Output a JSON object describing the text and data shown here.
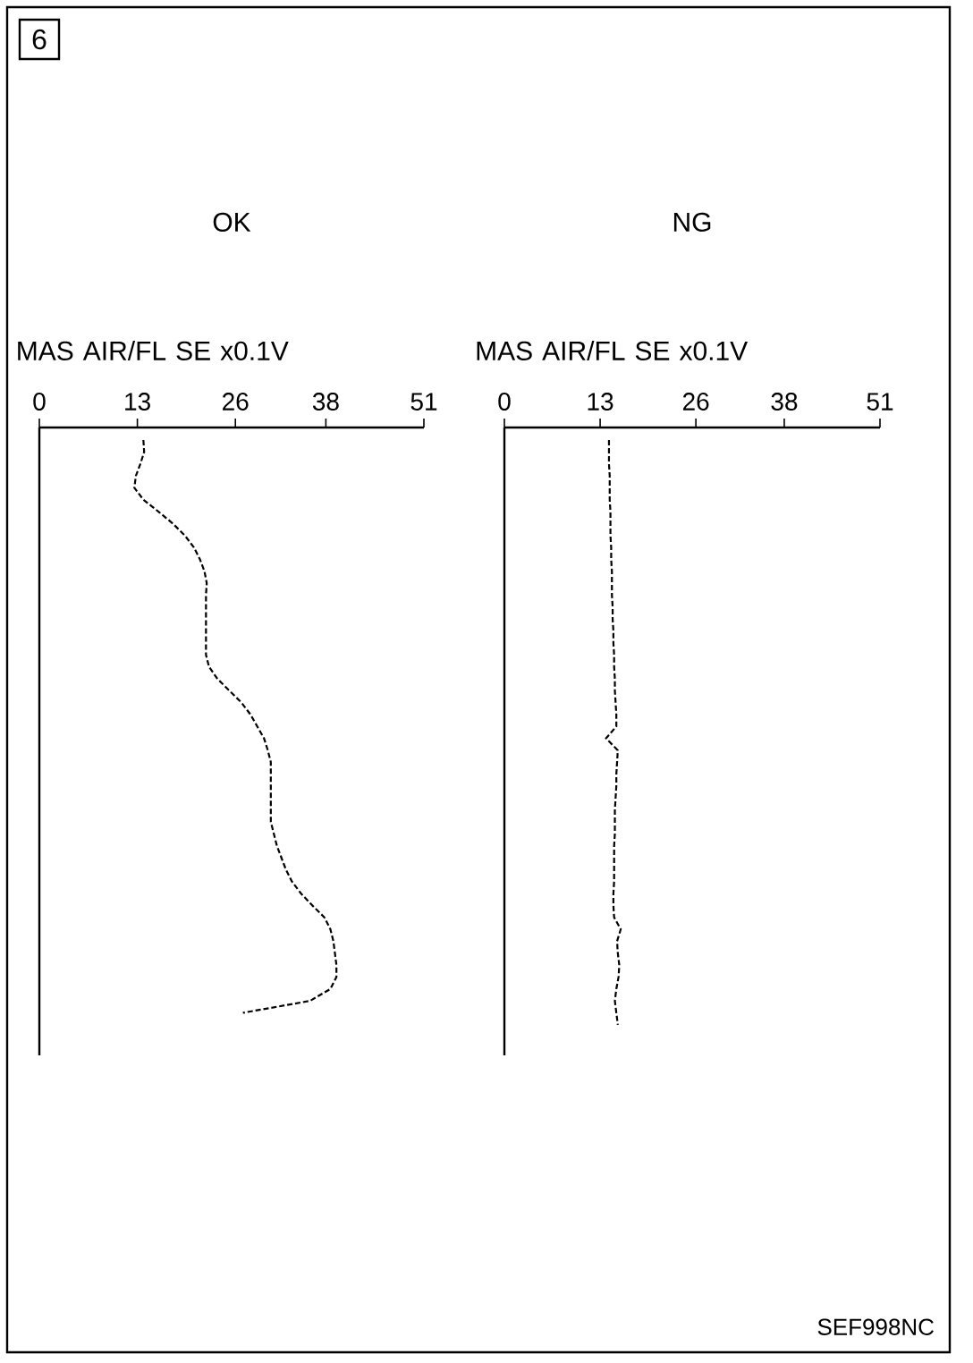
{
  "chart_data": [
    {
      "type": "line",
      "orientation": "horizontal",
      "title": "OK",
      "xlabel": "MAS AIR/FL SE x0.1V",
      "xlim": [
        0,
        51
      ],
      "xticks": [
        0,
        13,
        26,
        38,
        51
      ],
      "line_style": "dashed",
      "color": "#000000",
      "annotations": [
        "6"
      ],
      "categories": [
        null,
        null,
        null,
        null,
        null,
        null,
        null,
        null,
        null,
        null,
        null,
        null,
        null,
        null,
        null,
        null,
        null,
        null,
        null,
        null,
        null,
        null,
        null,
        null,
        null,
        null,
        null,
        null,
        null,
        null,
        null,
        null,
        null,
        null,
        null,
        null,
        null,
        null,
        null,
        null,
        null,
        null,
        null,
        null,
        null,
        null,
        null,
        null,
        null
      ],
      "values": [
        13.8,
        13.9,
        13.4,
        12.8,
        12.6,
        13.8,
        15.8,
        17.7,
        19.3,
        20.5,
        21.3,
        21.9,
        22.2,
        22.1,
        22.1,
        22.1,
        22.1,
        22.1,
        22.1,
        22.5,
        23.6,
        25.2,
        26.8,
        28.0,
        28.9,
        29.8,
        30.3,
        30.7,
        30.7,
        30.7,
        30.7,
        30.7,
        30.7,
        31.1,
        31.5,
        32.1,
        32.7,
        33.5,
        34.7,
        36.2,
        37.8,
        38.6,
        39.0,
        39.2,
        39.4,
        39.4,
        38.6,
        35.9,
        27.0
      ]
    },
    {
      "type": "line",
      "orientation": "horizontal",
      "title": "NG",
      "xlabel": "MAS AIR/FL SE x0.1V",
      "xlim": [
        0,
        51
      ],
      "xticks": [
        0,
        13,
        26,
        38,
        51
      ],
      "line_style": "dashed",
      "color": "#000000",
      "annotations": [
        "SEF998NC"
      ],
      "categories": [
        null,
        null,
        null,
        null,
        null,
        null,
        null,
        null,
        null,
        null,
        null,
        null,
        null,
        null,
        null,
        null,
        null,
        null,
        null,
        null,
        null,
        null,
        null,
        null,
        null,
        null,
        null,
        null,
        null,
        null,
        null,
        null,
        null,
        null,
        null,
        null,
        null,
        null,
        null,
        null,
        null,
        null,
        null,
        null,
        null,
        null,
        null,
        null,
        null,
        null
      ],
      "values": [
        14.2,
        14.2,
        14.2,
        14.3,
        14.3,
        14.3,
        14.4,
        14.4,
        14.4,
        14.5,
        14.5,
        14.6,
        14.6,
        14.6,
        14.7,
        14.7,
        14.8,
        14.8,
        14.9,
        14.9,
        15.0,
        15.0,
        15.1,
        15.2,
        15.2,
        13.8,
        15.4,
        15.3,
        15.2,
        15.2,
        15.1,
        15.0,
        15.0,
        15.0,
        14.9,
        14.9,
        14.9,
        14.9,
        14.8,
        14.8,
        14.9,
        15.8,
        15.3,
        15.4,
        15.6,
        15.5,
        15.2,
        15.0,
        15.2,
        15.4
      ]
    }
  ]
}
